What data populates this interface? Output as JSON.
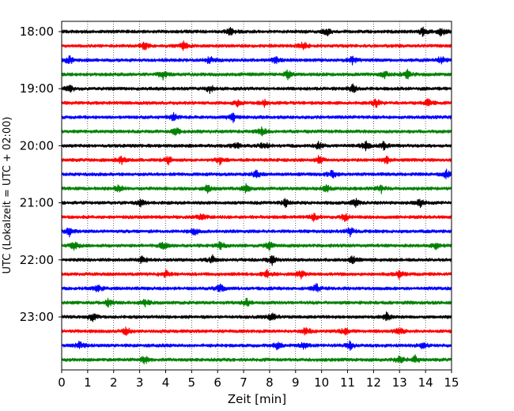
{
  "chart_data": {
    "type": "line",
    "subtype": "seismogram-helicorder",
    "xlabel": "Zeit  [min]",
    "ylabel": "UTC (Lokalzeit = UTC + 02:00)",
    "xlim": [
      0,
      15
    ],
    "x_ticks": [
      0,
      1,
      2,
      3,
      4,
      5,
      6,
      7,
      8,
      9,
      10,
      11,
      12,
      13,
      14,
      15
    ],
    "x_tick_labels": [
      "0",
      "1",
      "2",
      "3",
      "4",
      "5",
      "6",
      "7",
      "8",
      "9",
      "10",
      "11",
      "12",
      "13",
      "14",
      "15"
    ],
    "y_tick_labels": [
      "18:00",
      "19:00",
      "20:00",
      "21:00",
      "22:00",
      "23:00"
    ],
    "grid": "vertical dotted lines at each minute",
    "trace_interval_min": 15,
    "color_cycle": [
      "#000000",
      "#ff0000",
      "#0000ff",
      "#008000"
    ],
    "traces": [
      {
        "start": "18:00",
        "color": "#000000",
        "events_min": [
          6.5,
          10.2,
          13.9,
          14.6
        ]
      },
      {
        "start": "18:15",
        "color": "#ff0000",
        "events_min": [
          3.2,
          4.7,
          9.3
        ]
      },
      {
        "start": "18:30",
        "color": "#0000ff",
        "events_min": [
          0.3,
          5.7,
          8.2,
          11.2,
          14.6
        ]
      },
      {
        "start": "18:45",
        "color": "#008000",
        "events_min": [
          3.9,
          8.7,
          12.4,
          13.3
        ]
      },
      {
        "start": "19:00",
        "color": "#000000",
        "events_min": [
          0.3,
          5.7,
          11.2
        ]
      },
      {
        "start": "19:15",
        "color": "#ff0000",
        "events_min": [
          6.8,
          7.8,
          12.1,
          14.1
        ]
      },
      {
        "start": "19:30",
        "color": "#0000ff",
        "events_min": [
          4.3,
          6.6
        ]
      },
      {
        "start": "19:45",
        "color": "#008000",
        "events_min": [
          4.4,
          7.7
        ]
      },
      {
        "start": "20:00",
        "color": "#000000",
        "events_min": [
          6.7,
          7.8,
          9.9,
          11.7,
          12.4
        ]
      },
      {
        "start": "20:15",
        "color": "#ff0000",
        "events_min": [
          2.3,
          4.1,
          6.1,
          9.9,
          12.5
        ]
      },
      {
        "start": "20:30",
        "color": "#0000ff",
        "events_min": [
          7.5,
          10.4,
          14.8
        ]
      },
      {
        "start": "20:45",
        "color": "#008000",
        "events_min": [
          2.2,
          5.6,
          7.1,
          10.2,
          12.3
        ]
      },
      {
        "start": "21:00",
        "color": "#000000",
        "events_min": [
          3.0,
          8.6,
          11.3,
          13.8
        ]
      },
      {
        "start": "21:15",
        "color": "#ff0000",
        "events_min": [
          5.4,
          9.7,
          10.9
        ]
      },
      {
        "start": "21:30",
        "color": "#0000ff",
        "events_min": [
          0.3,
          5.1,
          11.1
        ]
      },
      {
        "start": "21:45",
        "color": "#008000",
        "events_min": [
          0.5,
          3.9,
          6.1,
          8.0,
          14.4
        ]
      },
      {
        "start": "22:00",
        "color": "#000000",
        "events_min": [
          3.1,
          5.8,
          8.1,
          11.2
        ]
      },
      {
        "start": "22:15",
        "color": "#ff0000",
        "events_min": [
          4.0,
          7.9,
          9.2,
          13.0
        ]
      },
      {
        "start": "22:30",
        "color": "#0000ff",
        "events_min": [
          1.4,
          6.1,
          9.8
        ]
      },
      {
        "start": "22:45",
        "color": "#008000",
        "events_min": [
          1.8,
          3.2,
          7.1
        ]
      },
      {
        "start": "23:00",
        "color": "#000000",
        "events_min": [
          1.2,
          8.1,
          12.5
        ]
      },
      {
        "start": "23:15",
        "color": "#ff0000",
        "events_min": [
          2.5,
          9.4,
          10.9,
          13.0
        ]
      },
      {
        "start": "23:30",
        "color": "#0000ff",
        "events_min": [
          0.7,
          8.3,
          9.3,
          11.1,
          13.9
        ]
      },
      {
        "start": "23:45",
        "color": "#008000",
        "events_min": [
          3.2,
          13.0,
          13.6
        ]
      }
    ]
  }
}
